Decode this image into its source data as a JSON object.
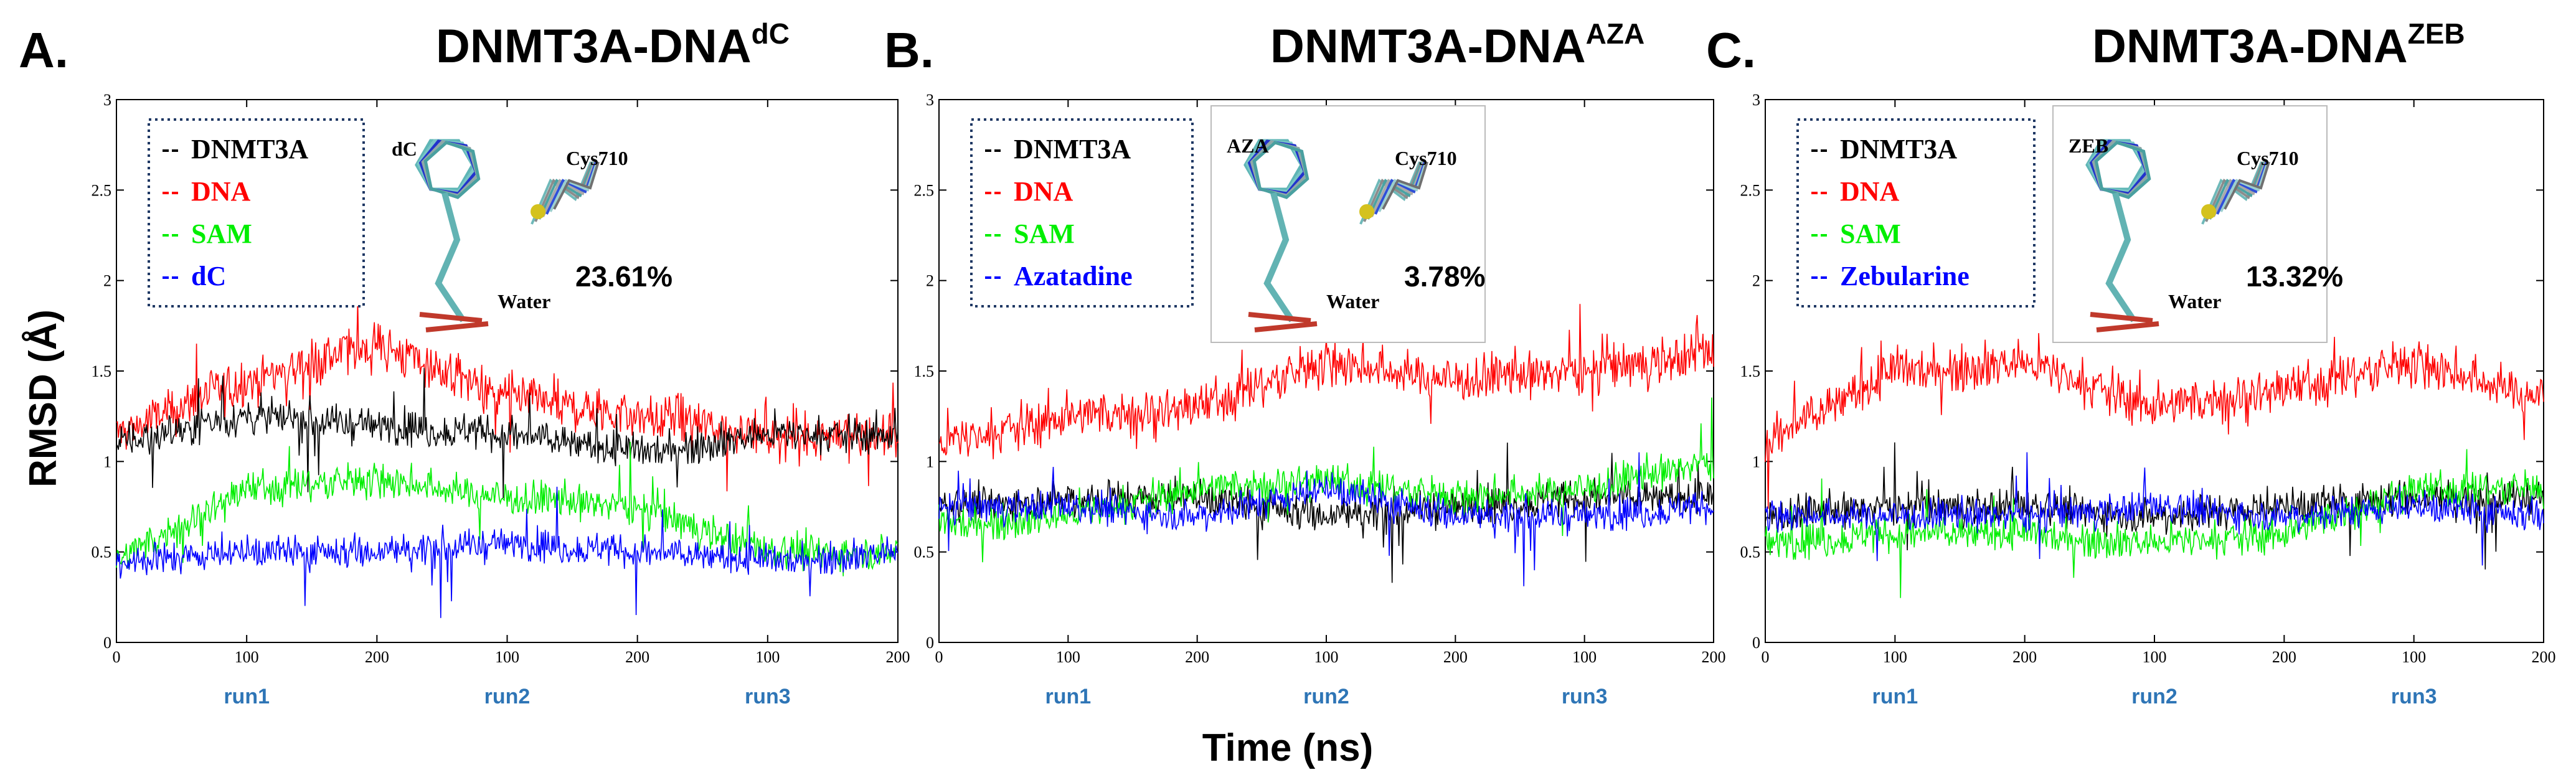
{
  "chart_data": [
    {
      "type": "line",
      "letter": "A.",
      "title": "DNMT3A-DNA",
      "title_sup": "dC",
      "ylabel": "RMSD (Å)",
      "xlabel": "Time (ns)",
      "ylim": [
        0,
        3
      ],
      "yticks": [
        "0",
        "0.5",
        "1",
        "1.5",
        "2",
        "2.5",
        "3"
      ],
      "xticks": [
        "0",
        "100",
        "200",
        "100",
        "200",
        "100",
        "200"
      ],
      "runs": [
        "run1",
        "run2",
        "run3"
      ],
      "legend_placement": "top-left",
      "legend": [
        {
          "label": "DNMT3A",
          "color": "#000000"
        },
        {
          "label": "DNA",
          "color": "#ff0000"
        },
        {
          "label": "SAM",
          "color": "#00ee00"
        },
        {
          "label": "dC",
          "color": "#0000ff"
        }
      ],
      "inset": {
        "ligand": "dC",
        "residue": "Cys710",
        "solvent": "Water",
        "percent": "23.61%"
      },
      "series": [
        {
          "color": "#000000",
          "x": [
            0,
            100,
            200,
            300,
            400,
            500,
            600
          ],
          "y": [
            1.1,
            1.25,
            1.2,
            1.15,
            1.05,
            1.15,
            1.15
          ]
        },
        {
          "color": "#ff0000",
          "x": [
            0,
            100,
            200,
            300,
            400,
            500,
            600
          ],
          "y": [
            1.15,
            1.45,
            1.65,
            1.35,
            1.25,
            1.15,
            1.15
          ]
        },
        {
          "color": "#00ee00",
          "x": [
            0,
            100,
            200,
            300,
            400,
            500,
            600
          ],
          "y": [
            0.45,
            0.85,
            0.9,
            0.8,
            0.75,
            0.5,
            0.5
          ]
        },
        {
          "color": "#0000ff",
          "x": [
            0,
            100,
            200,
            300,
            400,
            500,
            600
          ],
          "y": [
            0.45,
            0.5,
            0.5,
            0.55,
            0.5,
            0.45,
            0.5
          ]
        }
      ]
    },
    {
      "type": "line",
      "letter": "B.",
      "title": "DNMT3A-DNA",
      "title_sup": "AZA",
      "ylim": [
        0,
        3
      ],
      "yticks": [
        "0",
        "0.5",
        "1",
        "1.5",
        "2",
        "2.5",
        "3"
      ],
      "xticks": [
        "0",
        "100",
        "200",
        "100",
        "200",
        "100",
        "200"
      ],
      "runs": [
        "run1",
        "run2",
        "run3"
      ],
      "legend_placement": "top-left",
      "legend": [
        {
          "label": "DNMT3A",
          "color": "#000000"
        },
        {
          "label": "DNA",
          "color": "#ff0000"
        },
        {
          "label": "SAM",
          "color": "#00ee00"
        },
        {
          "label": "Azatadine",
          "color": "#0000ff"
        }
      ],
      "inset": {
        "ligand": "AZA",
        "residue": "Cys710",
        "solvent": "Water",
        "percent": "3.78%"
      },
      "series": [
        {
          "color": "#000000",
          "x": [
            0,
            100,
            200,
            300,
            400,
            500,
            600
          ],
          "y": [
            0.75,
            0.8,
            0.8,
            0.7,
            0.75,
            0.8,
            0.8
          ]
        },
        {
          "color": "#ff0000",
          "x": [
            0,
            100,
            200,
            300,
            400,
            500,
            600
          ],
          "y": [
            1.1,
            1.25,
            1.3,
            1.55,
            1.45,
            1.5,
            1.6
          ]
        },
        {
          "color": "#00ee00",
          "x": [
            0,
            100,
            200,
            300,
            400,
            500,
            600
          ],
          "y": [
            0.65,
            0.7,
            0.85,
            0.9,
            0.8,
            0.85,
            1.0
          ]
        },
        {
          "color": "#0000ff",
          "x": [
            0,
            100,
            200,
            300,
            400,
            500,
            600
          ],
          "y": [
            0.75,
            0.75,
            0.7,
            0.85,
            0.7,
            0.7,
            0.75
          ]
        }
      ]
    },
    {
      "type": "line",
      "letter": "C.",
      "title": "DNMT3A-DNA",
      "title_sup": "ZEB",
      "ylim": [
        0,
        3
      ],
      "yticks": [
        "0",
        "0.5",
        "1",
        "1.5",
        "2",
        "2.5",
        "3"
      ],
      "xticks": [
        "0",
        "100",
        "200",
        "100",
        "200",
        "100",
        "200"
      ],
      "runs": [
        "run1",
        "run2",
        "run3"
      ],
      "legend_placement": "top-left",
      "legend": [
        {
          "label": "DNMT3A",
          "color": "#000000"
        },
        {
          "label": "DNA",
          "color": "#ff0000"
        },
        {
          "label": "SAM",
          "color": "#00ee00"
        },
        {
          "label": "Zebularine",
          "color": "#0000ff"
        }
      ],
      "inset": {
        "ligand": "ZEB",
        "residue": "Cys710",
        "solvent": "Water",
        "percent": "13.32%"
      },
      "series": [
        {
          "color": "#000000",
          "x": [
            0,
            100,
            200,
            300,
            400,
            500,
            600
          ],
          "y": [
            0.7,
            0.75,
            0.75,
            0.7,
            0.75,
            0.8,
            0.8
          ]
        },
        {
          "color": "#ff0000",
          "x": [
            0,
            100,
            200,
            300,
            400,
            500,
            600
          ],
          "y": [
            1.1,
            1.5,
            1.55,
            1.3,
            1.4,
            1.55,
            1.35
          ]
        },
        {
          "color": "#00ee00",
          "x": [
            0,
            100,
            200,
            300,
            400,
            500,
            600
          ],
          "y": [
            0.55,
            0.6,
            0.6,
            0.55,
            0.6,
            0.85,
            0.85
          ]
        },
        {
          "color": "#0000ff",
          "x": [
            0,
            100,
            200,
            300,
            400,
            500,
            600
          ],
          "y": [
            0.7,
            0.7,
            0.7,
            0.75,
            0.7,
            0.75,
            0.7
          ]
        }
      ]
    }
  ]
}
